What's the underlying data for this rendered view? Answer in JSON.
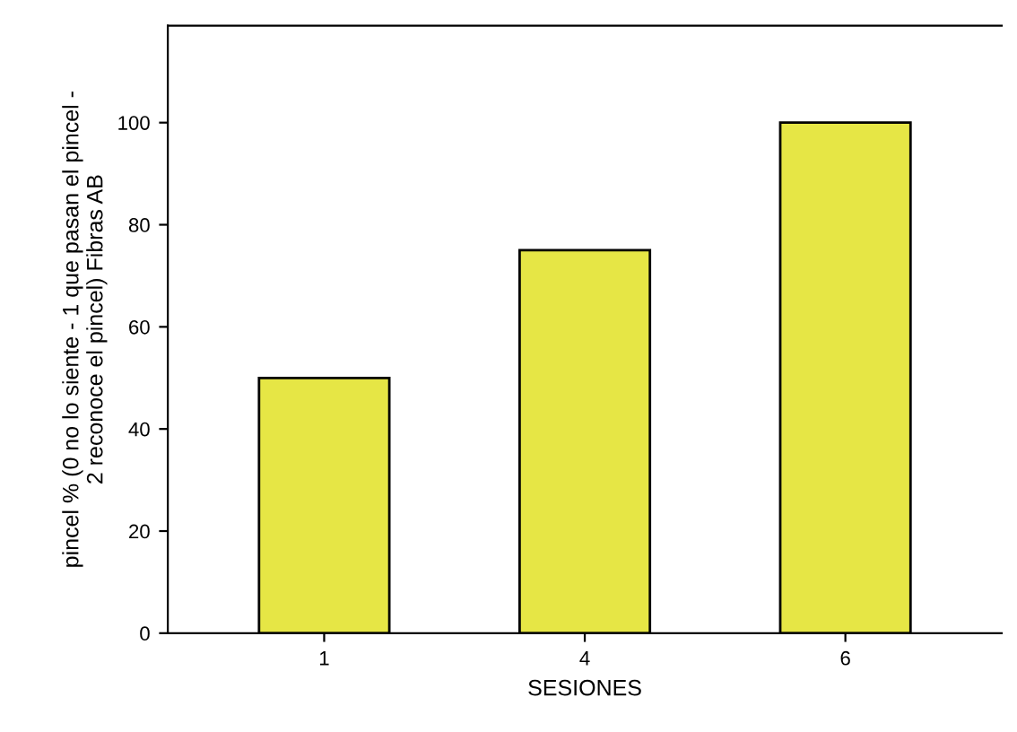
{
  "chart_data": {
    "type": "bar",
    "xlabel": "SESIONES",
    "ylabel": "pincel % (0 no lo siente - 1 que pasan el pincel -\n2 reconoce el pincel) Fibras AB",
    "categories": [
      "1",
      "4",
      "6"
    ],
    "values": [
      50,
      75,
      100
    ],
    "color": "#e6e645",
    "ylim": [
      0,
      119
    ],
    "yticks": [
      0,
      20,
      40,
      60,
      80,
      100
    ],
    "grid": false,
    "legend": false
  }
}
